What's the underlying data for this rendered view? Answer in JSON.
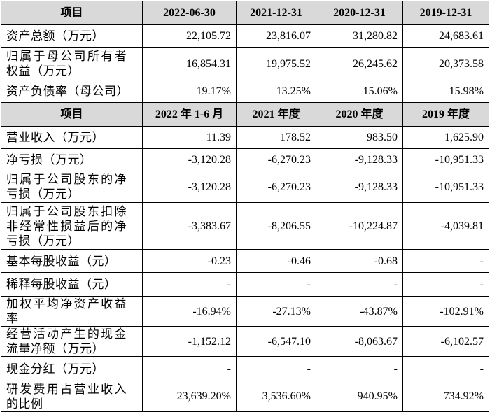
{
  "table": {
    "sections": [
      {
        "header": [
          "项目",
          "2022-06-30",
          "2021-12-31",
          "2020-12-31",
          "2019-12-31"
        ],
        "rows": [
          [
            "资产总额（万元）",
            "22,105.72",
            "23,816.07",
            "31,280.82",
            "24,683.61"
          ],
          [
            "归属于母公司所有者权益（万元）",
            "16,854.31",
            "19,975.52",
            "26,245.62",
            "20,373.58"
          ],
          [
            "资产负债率（母公司）",
            "19.17%",
            "13.25%",
            "15.06%",
            "15.98%"
          ]
        ]
      },
      {
        "header": [
          "项目",
          "2022 年 1-6 月",
          "2021 年度",
          "2020 年度",
          "2019 年度"
        ],
        "rows": [
          [
            "营业收入（万元）",
            "11.39",
            "178.52",
            "983.50",
            "1,625.90"
          ],
          [
            "净亏损（万元）",
            "-3,120.28",
            "-6,270.23",
            "-9,128.33",
            "-10,951.33"
          ],
          [
            "归属于公司股东的净亏损（万元）",
            "-3,120.28",
            "-6,270.23",
            "-9,128.33",
            "-10,951.33"
          ],
          [
            "归属于公司股东扣除非经常性损益后的净亏损（万元）",
            "-3,383.67",
            "-8,206.55",
            "-10,224.87",
            "-4,039.81"
          ],
          [
            "基本每股收益（元）",
            "-0.23",
            "-0.46",
            "-0.68",
            "-"
          ],
          [
            "稀释每股收益（元）",
            "-",
            "-",
            "-",
            "-"
          ],
          [
            "加权平均净资产收益率",
            "-16.94%",
            "-27.13%",
            "-43.87%",
            "-102.91%"
          ],
          [
            "经营活动产生的现金流量净额（万元）",
            "-1,152.12",
            "-6,547.10",
            "-8,063.67",
            "-6,102.57"
          ],
          [
            "现金分红（万元）",
            "-",
            "-",
            "-",
            "-"
          ],
          [
            "研发费用占营业收入的比例",
            "23,639.20%",
            "3,536.60%",
            "940.95%",
            "734.92%"
          ]
        ]
      }
    ]
  }
}
